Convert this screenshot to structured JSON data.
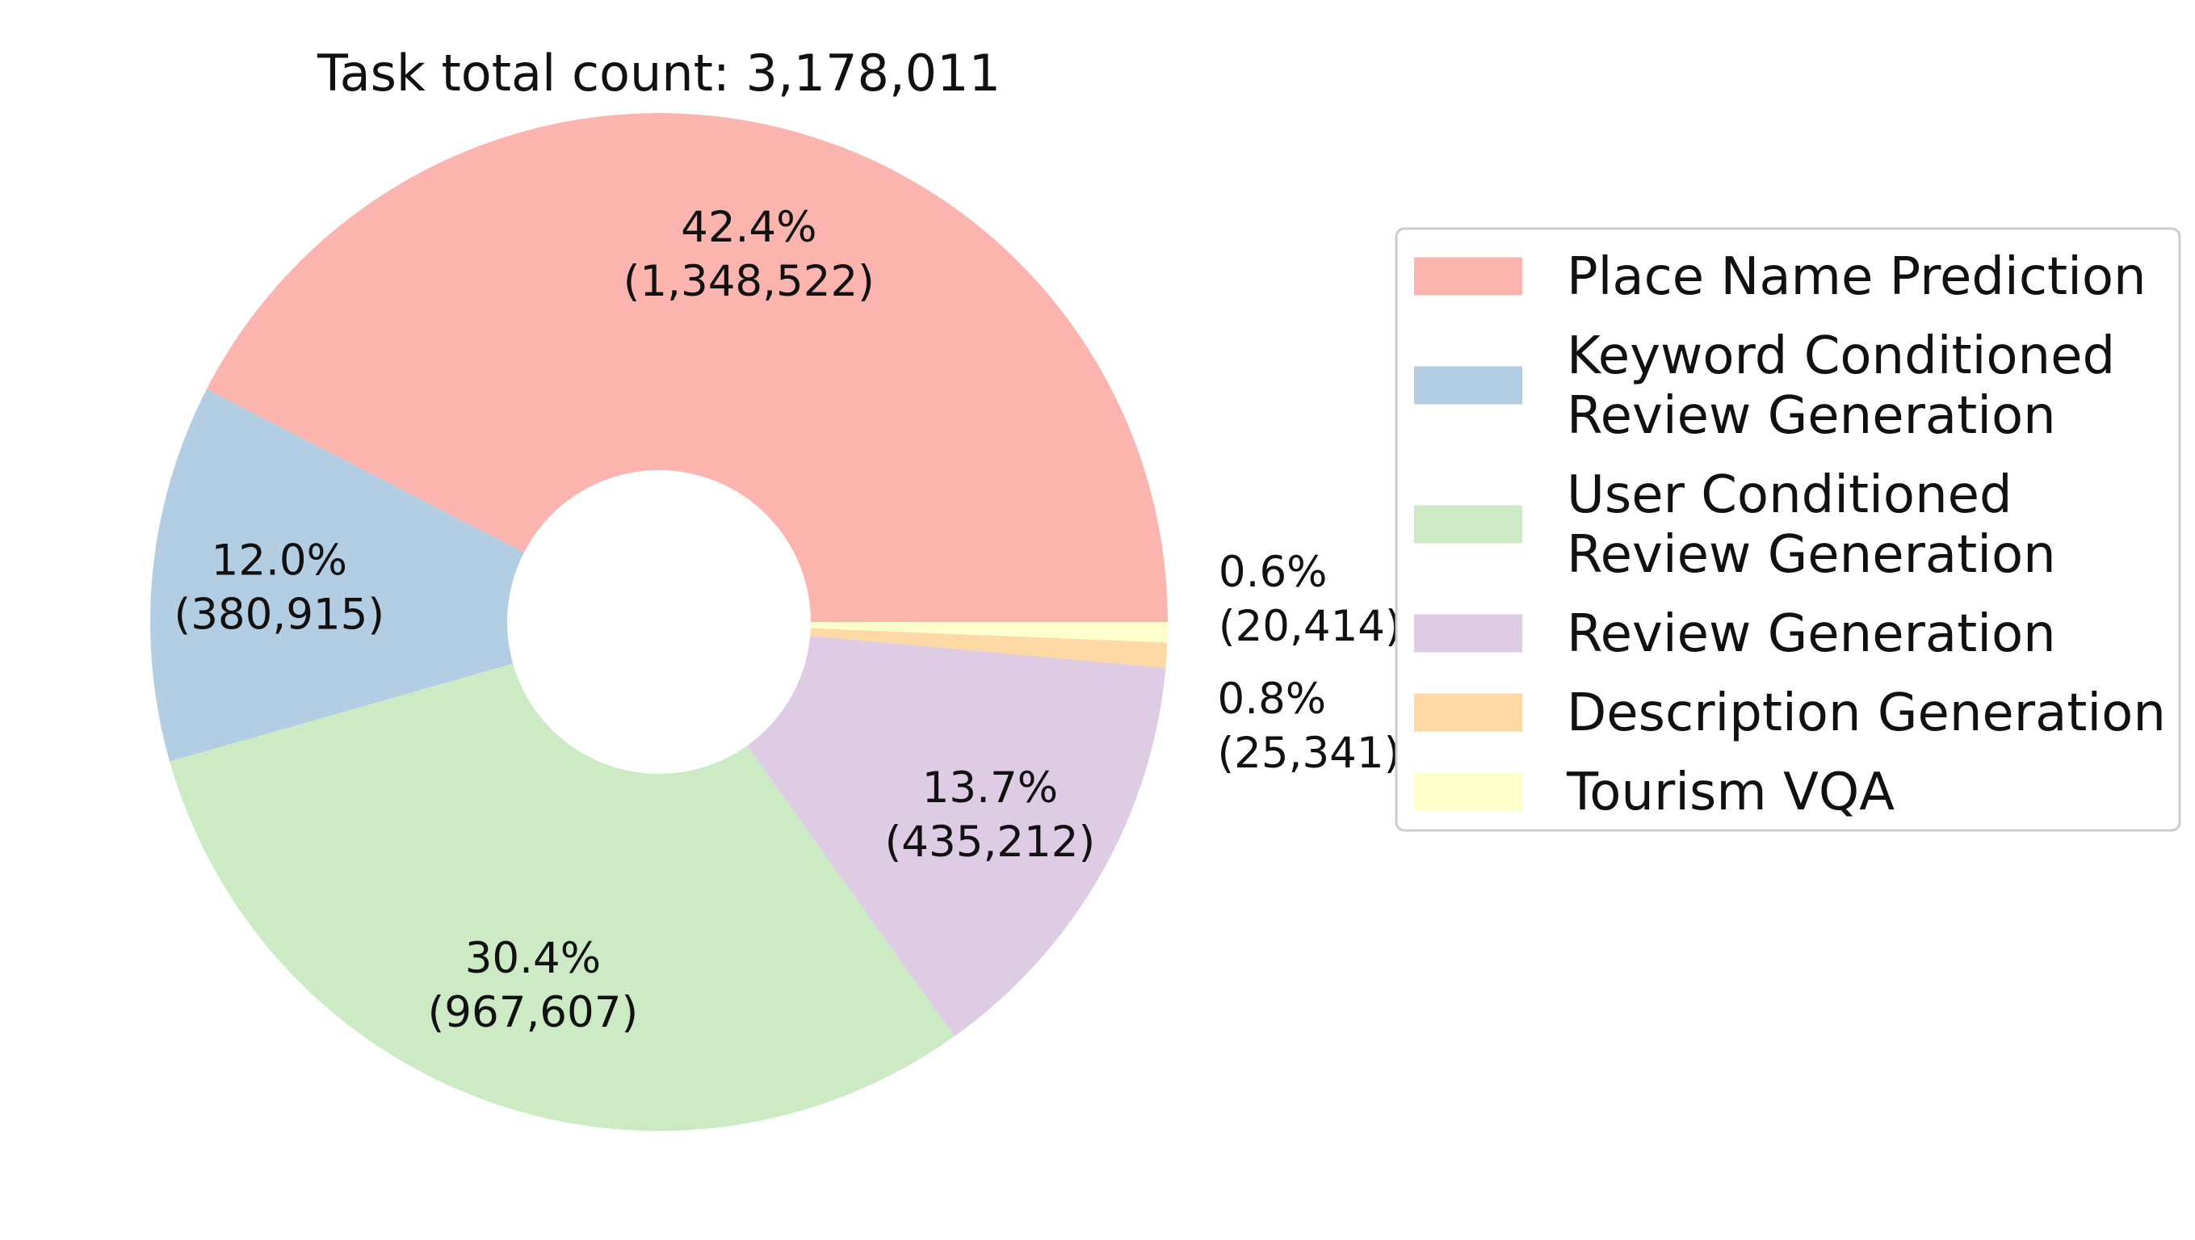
{
  "chart_data": {
    "type": "pie",
    "donut": true,
    "title": "Task total count: 3,178,011",
    "total": 3178011,
    "start_angle_deg": 0,
    "direction": "counterclockwise",
    "legend_position": "right",
    "slices": [
      {
        "name": "Place Name Prediction",
        "lines": [
          "Place Name Prediction"
        ],
        "value": 1348522,
        "percent": 42.4,
        "pct_label": "42.4%",
        "count_label": "(1,348,522)",
        "color": "#fbb4ae"
      },
      {
        "name": "Keyword Conditioned Review Generation",
        "lines": [
          "Keyword Conditioned",
          "Review Generation"
        ],
        "value": 380915,
        "percent": 12.0,
        "pct_label": "12.0%",
        "count_label": "(380,915)",
        "color": "#b3cde3"
      },
      {
        "name": "User Conditioned Review Generation",
        "lines": [
          "User Conditioned",
          "Review Generation"
        ],
        "value": 967607,
        "percent": 30.4,
        "pct_label": "30.4%",
        "count_label": "(967,607)",
        "color": "#ccebc5"
      },
      {
        "name": "Review Generation",
        "lines": [
          "Review Generation"
        ],
        "value": 435212,
        "percent": 13.7,
        "pct_label": "13.7%",
        "count_label": "(435,212)",
        "color": "#decbe4"
      },
      {
        "name": "Description Generation",
        "lines": [
          "Description Generation"
        ],
        "value": 25341,
        "percent": 0.8,
        "pct_label": "0.8%",
        "count_label": "(25,341)",
        "color": "#fed9a6"
      },
      {
        "name": "Tourism VQA",
        "lines": [
          "Tourism VQA"
        ],
        "value": 20414,
        "percent": 0.6,
        "pct_label": "0.6%",
        "count_label": "(20,414)",
        "color": "#ffffcc"
      }
    ]
  }
}
